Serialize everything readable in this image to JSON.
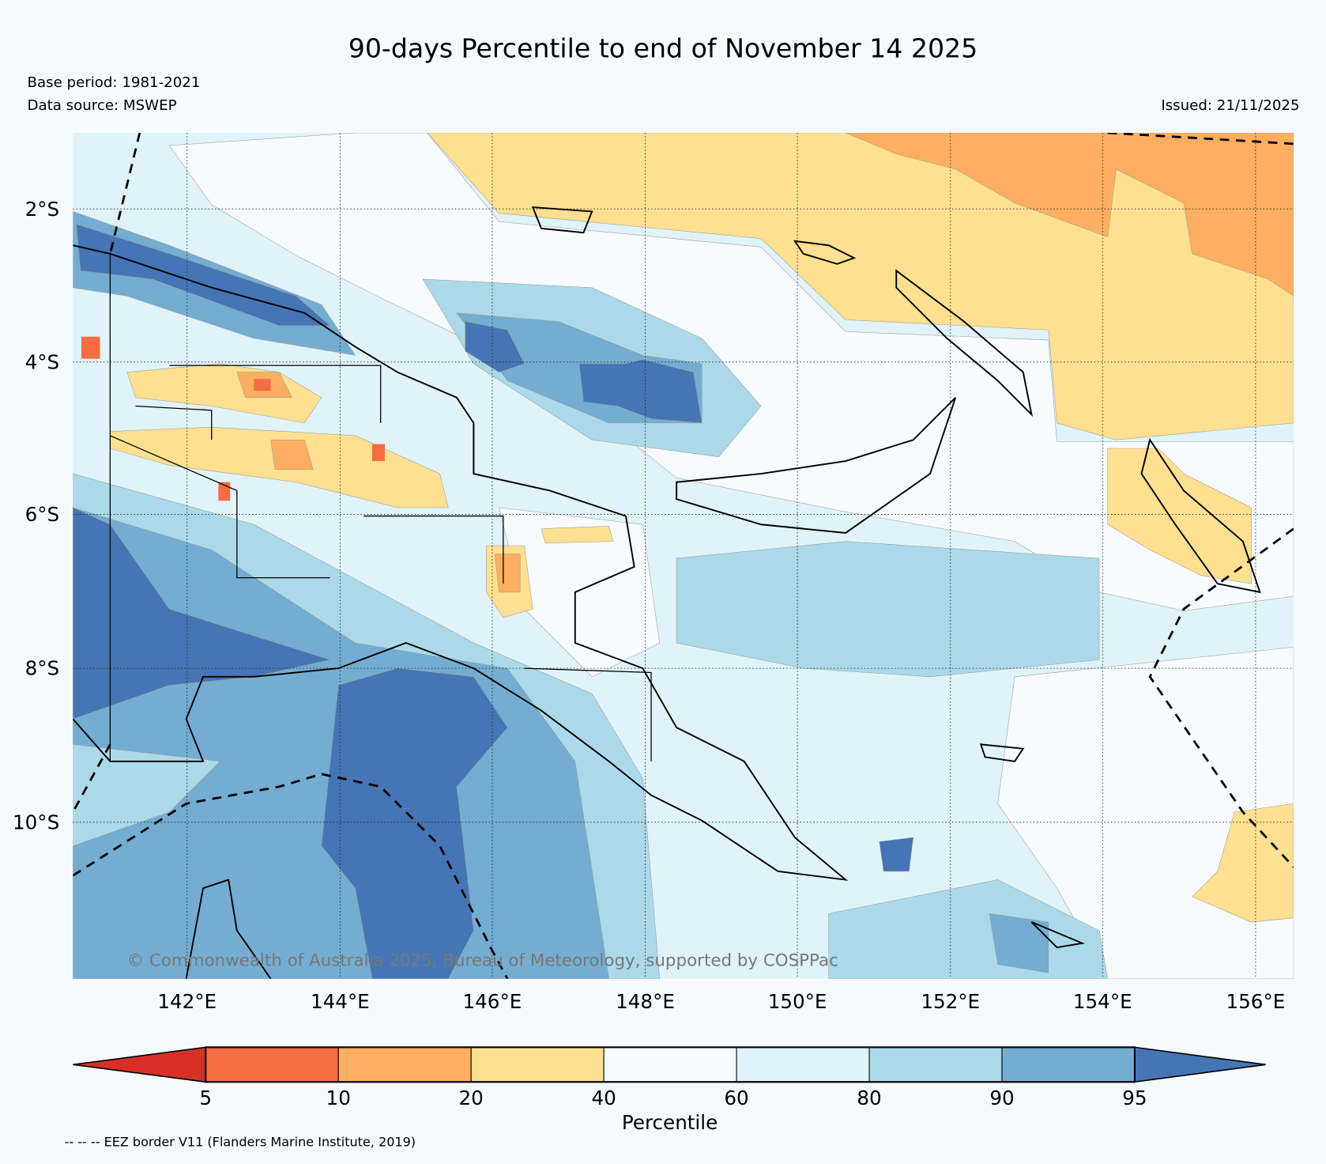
{
  "header": {
    "title": "90-days Percentile to end of November 14 2025",
    "base_period": "Base period: 1981-2021",
    "data_source": "Data source: MSWEP",
    "issued": "Issued: 21/11/2025"
  },
  "map": {
    "lat_labels": [
      "2°S",
      "4°S",
      "6°S",
      "8°S",
      "10°S"
    ],
    "lon_labels": [
      "142°E",
      "144°E",
      "146°E",
      "148°E",
      "150°E",
      "152°E",
      "154°E",
      "156°E"
    ],
    "credit": "© Commonwealth of Australia 2025, Bureau of Meteorology, supported by COSPPac"
  },
  "colorbar": {
    "ticks": [
      "5",
      "10",
      "20",
      "40",
      "60",
      "80",
      "90",
      "95"
    ],
    "label": "Percentile",
    "colors": {
      "below_5": "#d73027",
      "p5_10": "#f46d43",
      "p10_20": "#fdae61",
      "p20_40": "#fee090",
      "p40_60": "#f7fbfd",
      "p60_80": "#e0f3f8",
      "p80_90": "#abd9e9",
      "p90_95": "#74add1",
      "above_95": "#4575b4"
    }
  },
  "footer": {
    "eez_note": "-- -- -- EEZ border V11 (Flanders Marine Institute, 2019)"
  }
}
